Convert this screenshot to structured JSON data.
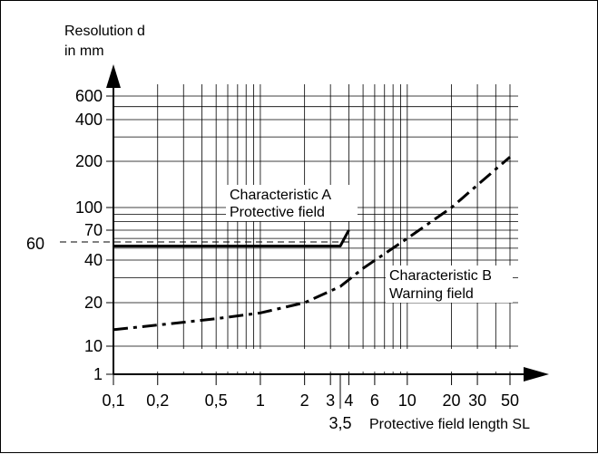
{
  "chart_data": {
    "type": "line",
    "title": "",
    "ylabel_line1": "Resolution d",
    "ylabel_line2": "in mm",
    "xlabel": "Protective field length SL",
    "x_scale": "log",
    "y_scale": "log (irregular)",
    "grid": true,
    "x_ticks": [
      "0,1",
      "0,2",
      "0,5",
      "1",
      "2",
      "3",
      "4",
      "6",
      "10",
      "20",
      "30",
      "50"
    ],
    "x_extra_ticks": [
      "3,5"
    ],
    "y_ticks": [
      "1",
      "10",
      "20",
      "40",
      "70",
      "100",
      "200",
      "400",
      "600"
    ],
    "y_marker": "60",
    "series": [
      {
        "name_line1": "Characteristic A",
        "name_line2": "Protective field",
        "style": "solid",
        "x": [
          0.1,
          0.5,
          1,
          2,
          3.5,
          4
        ],
        "y": [
          52,
          52,
          52,
          52,
          52,
          70
        ]
      },
      {
        "name_line1": "Characteristic B",
        "name_line2": "Warning field",
        "style": "dash-dot",
        "x": [
          0.1,
          0.2,
          0.5,
          1,
          2,
          3.5,
          5,
          7,
          10,
          20,
          30,
          50
        ],
        "y": [
          13,
          14,
          15.5,
          17,
          20,
          26,
          35,
          45,
          60,
          100,
          140,
          215
        ]
      }
    ]
  }
}
